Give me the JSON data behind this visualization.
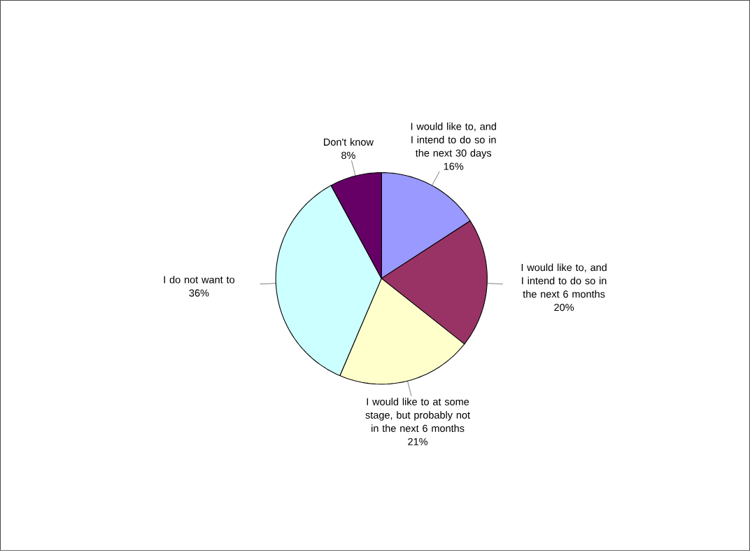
{
  "chart_data": {
    "type": "pie",
    "categories": [
      "I would like to, and I intend to do so in the next 30 days",
      "I would like to, and I intend to do so in the next 6 months",
      "I would like to at some stage, but probably not in the next 6 months",
      "I do not want to",
      "Don't know"
    ],
    "values": [
      16,
      20,
      21,
      36,
      8
    ],
    "value_labels": [
      "16%",
      "20%",
      "21%",
      "36%",
      "8%"
    ],
    "colors": [
      "#9999ff",
      "#993366",
      "#ffffcc",
      "#ccffff",
      "#660066"
    ]
  }
}
